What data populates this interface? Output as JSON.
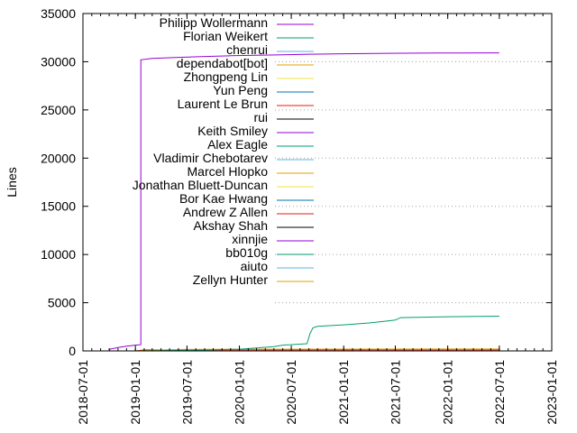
{
  "chart_data": {
    "type": "line",
    "title": "",
    "xlabel": "",
    "ylabel": "Lines",
    "ylim": [
      0,
      35000
    ],
    "xlim": [
      "2018-07-01",
      "2023-01-01"
    ],
    "y_ticks": [
      0,
      5000,
      10000,
      15000,
      20000,
      25000,
      30000,
      35000
    ],
    "x_ticks": [
      "2018-07-01",
      "2019-01-01",
      "2019-07-01",
      "2020-01-01",
      "2020-07-01",
      "2021-01-01",
      "2021-07-01",
      "2022-01-01",
      "2022-07-01",
      "2023-01-01"
    ],
    "grid": "horizontal dotted, right portion only",
    "legend_position": "top-left inside",
    "series": [
      {
        "name": "Philipp Wollermann",
        "color": "#9400d3",
        "points": [
          [
            "2018-10-01",
            0
          ],
          [
            "2018-10-05",
            200
          ],
          [
            "2018-11-01",
            350
          ],
          [
            "2018-12-01",
            500
          ],
          [
            "2019-01-01",
            600
          ],
          [
            "2019-01-20",
            650
          ],
          [
            "2019-01-20",
            30200
          ],
          [
            "2019-03-01",
            30350
          ],
          [
            "2019-06-01",
            30450
          ],
          [
            "2019-09-01",
            30550
          ],
          [
            "2019-12-01",
            30620
          ],
          [
            "2020-03-01",
            30670
          ],
          [
            "2020-06-01",
            30720
          ],
          [
            "2020-09-01",
            30780
          ],
          [
            "2020-12-01",
            30820
          ],
          [
            "2021-06-01",
            30870
          ],
          [
            "2021-12-01",
            30900
          ],
          [
            "2022-07-01",
            30920
          ]
        ]
      },
      {
        "name": "Florian Weikert",
        "color": "#009e73",
        "points": [
          [
            "2019-01-01",
            0
          ],
          [
            "2019-07-01",
            60
          ],
          [
            "2020-01-01",
            180
          ],
          [
            "2020-03-01",
            300
          ],
          [
            "2020-05-01",
            450
          ],
          [
            "2020-06-01",
            600
          ],
          [
            "2020-08-01",
            700
          ],
          [
            "2020-08-25",
            750
          ],
          [
            "2020-09-05",
            1800
          ],
          [
            "2020-09-15",
            2400
          ],
          [
            "2020-10-01",
            2550
          ],
          [
            "2021-01-01",
            2700
          ],
          [
            "2021-04-01",
            2900
          ],
          [
            "2021-06-01",
            3100
          ],
          [
            "2021-07-01",
            3200
          ],
          [
            "2021-07-20",
            3450
          ],
          [
            "2022-01-01",
            3550
          ],
          [
            "2022-07-01",
            3600
          ]
        ]
      },
      {
        "name": "chenrui",
        "color": "#56b4e9",
        "points": [
          [
            "2021-01-01",
            0
          ],
          [
            "2022-07-01",
            0
          ]
        ]
      },
      {
        "name": "dependabot[bot]",
        "color": "#e69f00",
        "points": [
          [
            "2019-01-01",
            0
          ],
          [
            "2019-06-01",
            150
          ],
          [
            "2020-01-01",
            180
          ],
          [
            "2022-07-01",
            200
          ]
        ]
      },
      {
        "name": "Zhongpeng Lin",
        "color": "#f0e442",
        "points": [
          [
            "2019-06-01",
            0
          ],
          [
            "2022-07-01",
            0
          ]
        ]
      },
      {
        "name": "Yun Peng",
        "color": "#0072b2",
        "points": [
          [
            "2019-06-01",
            0
          ],
          [
            "2022-07-01",
            0
          ]
        ]
      },
      {
        "name": "Laurent Le Brun",
        "color": "#e51e10",
        "points": [
          [
            "2019-01-01",
            0
          ],
          [
            "2019-02-01",
            100
          ],
          [
            "2022-07-01",
            100
          ]
        ]
      },
      {
        "name": "rui",
        "color": "#000000",
        "points": [
          [
            "2019-06-01",
            0
          ],
          [
            "2022-07-01",
            0
          ]
        ]
      },
      {
        "name": "Keith Smiley",
        "color": "#9400d3",
        "points": [
          [
            "2019-06-01",
            0
          ],
          [
            "2022-07-01",
            0
          ]
        ]
      },
      {
        "name": "Alex Eagle",
        "color": "#009e73",
        "points": [
          [
            "2019-06-01",
            0
          ],
          [
            "2022-07-01",
            0
          ]
        ]
      },
      {
        "name": "Vladimir Chebotarev",
        "color": "#56b4e9",
        "points": [
          [
            "2019-06-01",
            0
          ],
          [
            "2022-07-01",
            0
          ]
        ]
      },
      {
        "name": "Marcel Hlopko",
        "color": "#e69f00",
        "points": [
          [
            "2019-06-01",
            0
          ],
          [
            "2022-07-01",
            0
          ]
        ]
      },
      {
        "name": "Jonathan Bluett-Duncan",
        "color": "#f0e442",
        "points": [
          [
            "2019-06-01",
            0
          ],
          [
            "2022-07-01",
            0
          ]
        ]
      },
      {
        "name": "Bor Kae Hwang",
        "color": "#0072b2",
        "points": [
          [
            "2019-06-01",
            0
          ],
          [
            "2022-07-01",
            0
          ]
        ]
      },
      {
        "name": "Andrew Z Allen",
        "color": "#e51e10",
        "points": [
          [
            "2019-06-01",
            0
          ],
          [
            "2022-07-01",
            0
          ]
        ]
      },
      {
        "name": "Akshay Shah",
        "color": "#000000",
        "points": [
          [
            "2019-06-01",
            0
          ],
          [
            "2022-07-01",
            0
          ]
        ]
      },
      {
        "name": "xinnjie",
        "color": "#9400d3",
        "points": [
          [
            "2019-06-01",
            0
          ],
          [
            "2022-07-01",
            0
          ]
        ]
      },
      {
        "name": "bb010g",
        "color": "#009e73",
        "points": [
          [
            "2019-06-01",
            0
          ],
          [
            "2022-07-01",
            0
          ]
        ]
      },
      {
        "name": "aiuto",
        "color": "#56b4e9",
        "points": [
          [
            "2019-06-01",
            0
          ],
          [
            "2022-07-01",
            0
          ]
        ]
      },
      {
        "name": "Zellyn Hunter",
        "color": "#e69f00",
        "points": [
          [
            "2019-06-01",
            0
          ],
          [
            "2022-07-01",
            0
          ]
        ]
      }
    ]
  }
}
